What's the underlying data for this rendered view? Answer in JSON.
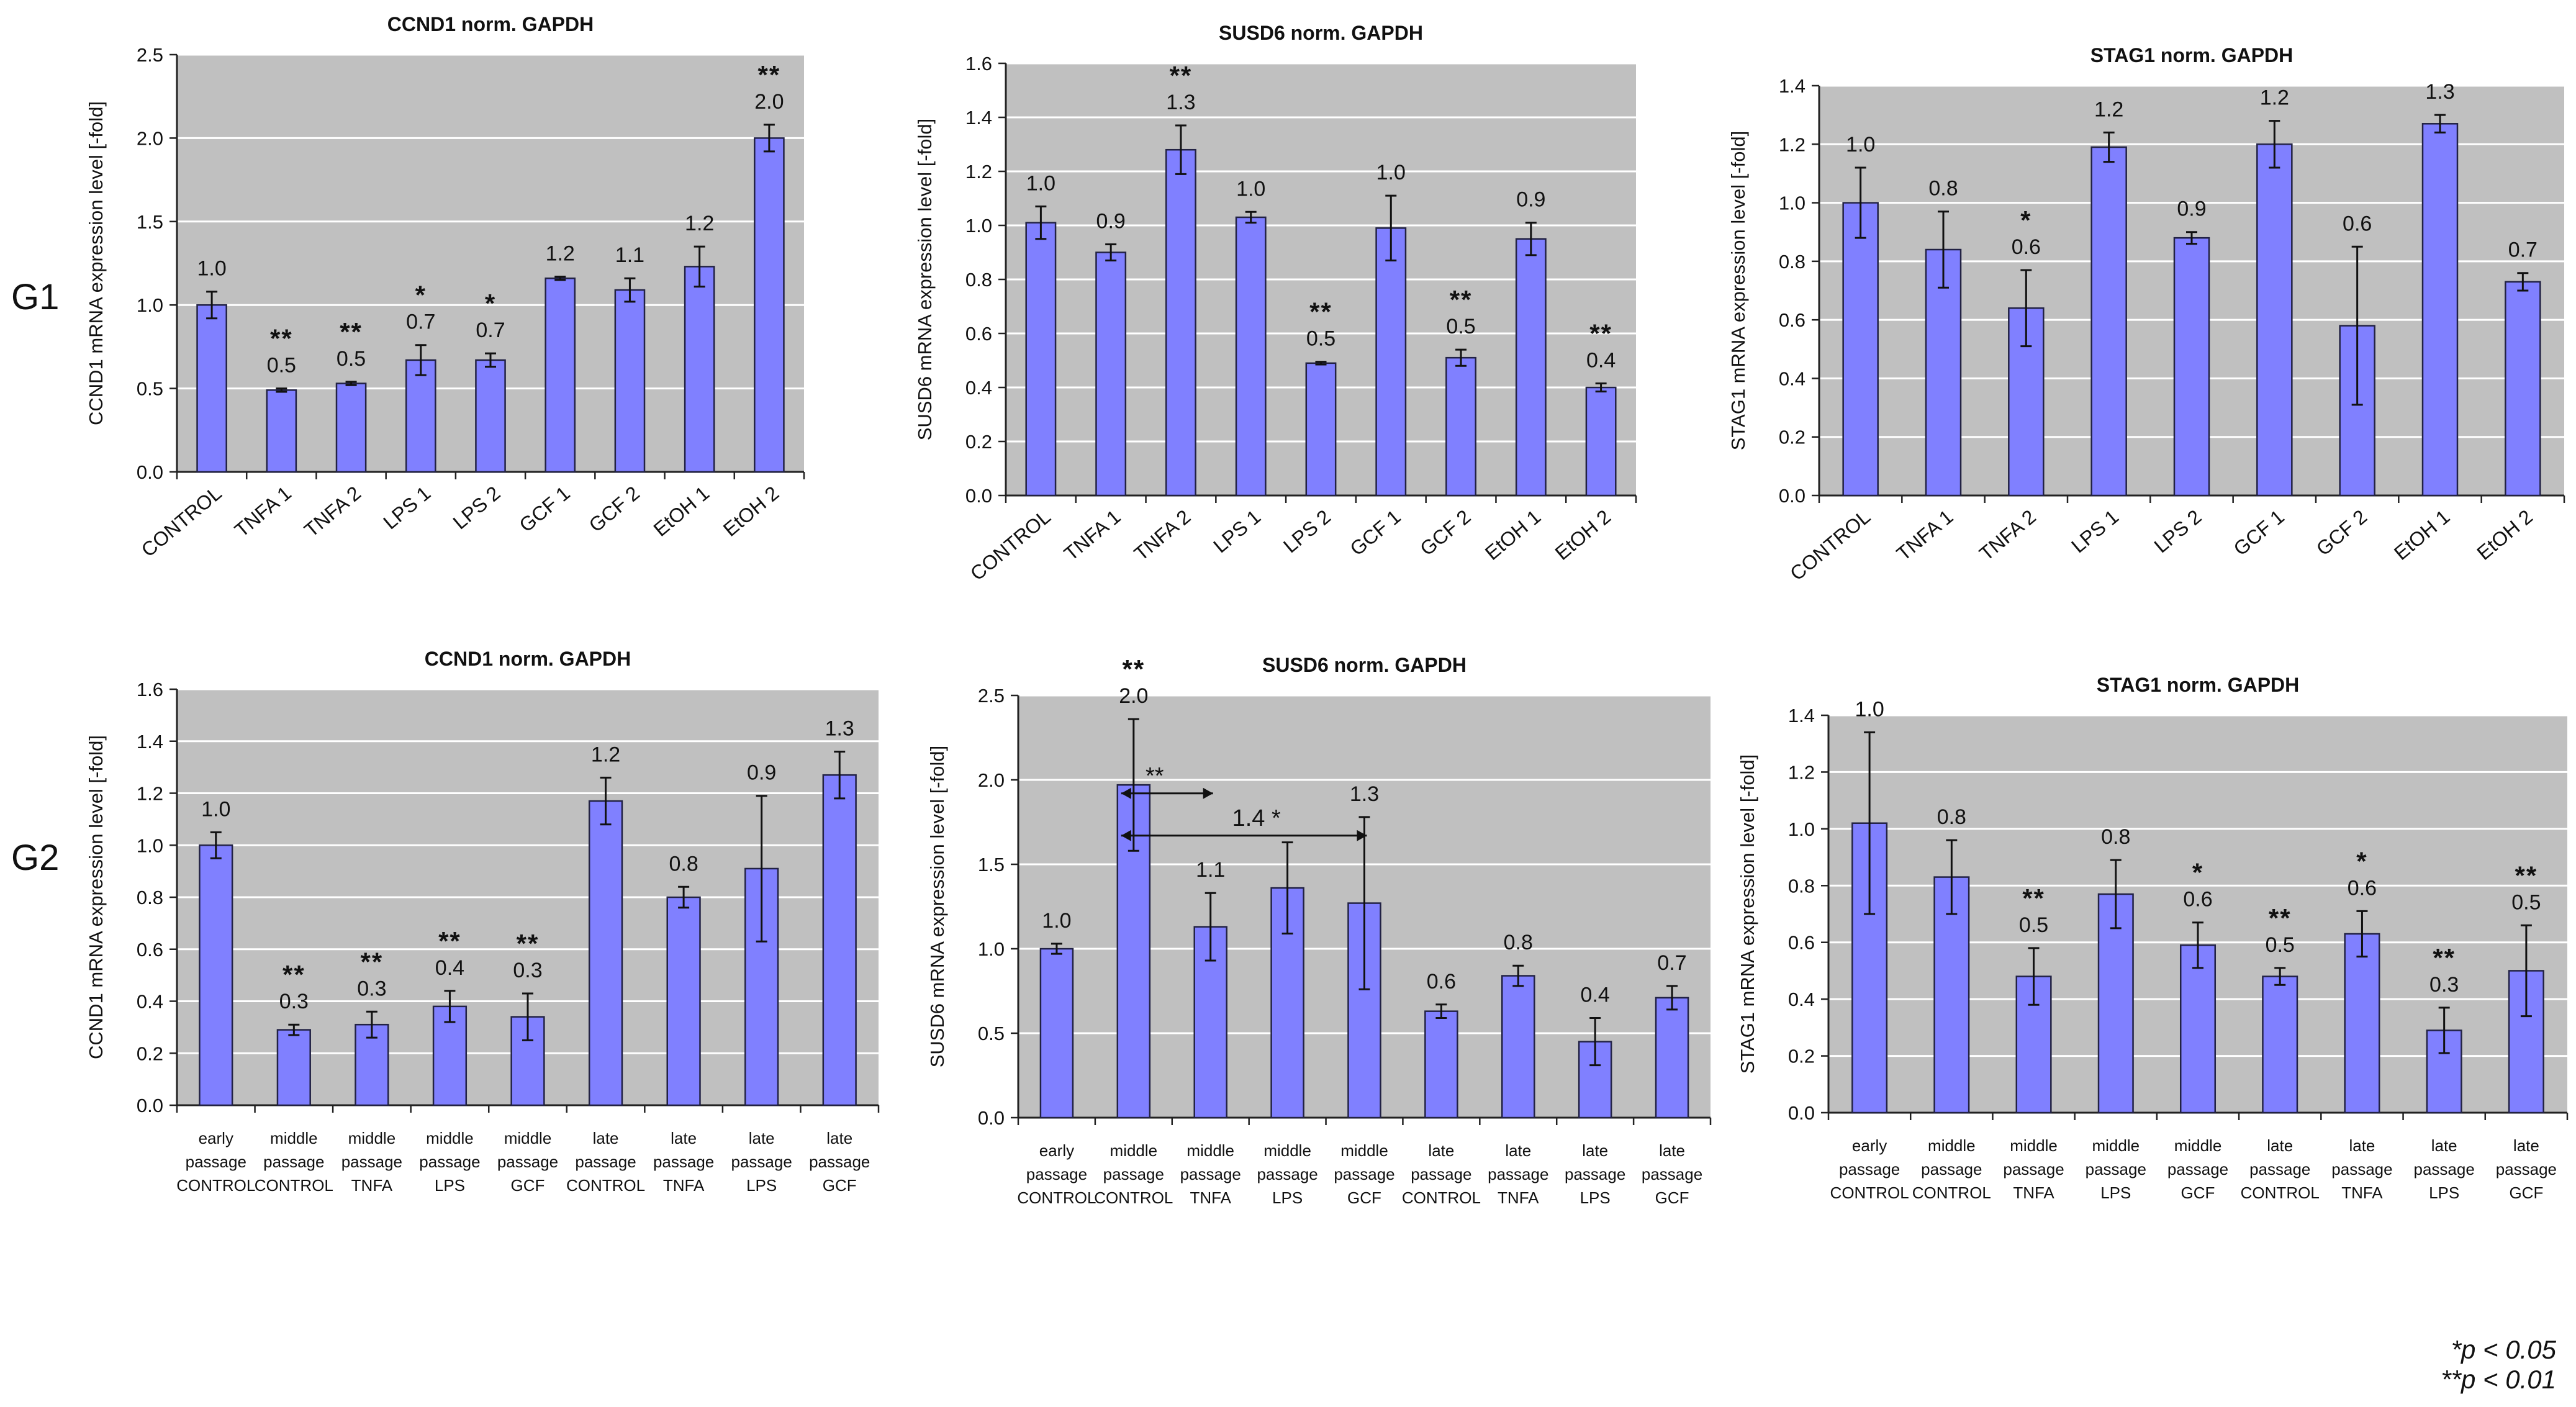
{
  "row_labels": [
    "G1",
    "G2"
  ],
  "legend": [
    "*p < 0.05",
    "**p < 0.01"
  ],
  "colors": {
    "bar": "#8080ff",
    "bar_stroke": "#222244",
    "plot_bg": "#c0c0c0",
    "grid": "#ffffff",
    "text": "#111111"
  },
  "chart_data": [
    {
      "id": "g1-ccnd1",
      "type": "bar",
      "title": "CCND1 norm. GAPDH",
      "ylabel": "CCND1  mRNA expression level [-fold]",
      "ylim": [
        0,
        2.5
      ],
      "yticks": [
        0,
        0.5,
        1.0,
        1.5,
        2.0,
        2.5
      ],
      "ytick_labels": [
        "0.0",
        "0.5",
        "1.0",
        "1.5",
        "2.0",
        "2.5"
      ],
      "categories": [
        "CONTROL",
        "TNFA 1",
        "TNFA  2",
        "LPS 1",
        "LPS 2",
        "GCF 1",
        "GCF 2",
        "EtOH 1",
        "EtOH 2"
      ],
      "values": [
        1.0,
        0.49,
        0.53,
        0.67,
        0.67,
        1.16,
        1.09,
        1.23,
        2.0
      ],
      "errors": [
        0.08,
        0.01,
        0.01,
        0.09,
        0.04,
        0.01,
        0.07,
        0.12,
        0.08
      ],
      "value_labels": [
        "1.0",
        "0.5",
        "0.5",
        "0.7",
        "0.7",
        "1.2",
        "1.1",
        "1.2",
        "2.0"
      ],
      "significance": [
        "",
        "**",
        "**",
        "*",
        "*",
        "",
        "",
        "",
        "**"
      ]
    },
    {
      "id": "g1-susd6",
      "type": "bar",
      "title": "SUSD6 norm. GAPDH",
      "ylabel": "SUSD6  mRNA expression level [-fold]",
      "ylim": [
        0,
        1.6
      ],
      "yticks": [
        0,
        0.2,
        0.4,
        0.6,
        0.8,
        1.0,
        1.2,
        1.4,
        1.6
      ],
      "ytick_labels": [
        "0.0",
        "0.2",
        "0.4",
        "0.6",
        "0.8",
        "1.0",
        "1.2",
        "1.4",
        "1.6"
      ],
      "categories": [
        "CONTROL",
        "TNFA 1",
        "TNFA  2",
        "LPS 1",
        "LPS 2",
        "GCF 1",
        "GCF 2",
        "EtOH 1",
        "EtOH 2"
      ],
      "values": [
        1.01,
        0.9,
        1.28,
        1.03,
        0.49,
        0.99,
        0.51,
        0.95,
        0.4
      ],
      "errors": [
        0.06,
        0.03,
        0.09,
        0.02,
        0.005,
        0.12,
        0.03,
        0.06,
        0.015
      ],
      "value_labels": [
        "1.0",
        "0.9",
        "1.3",
        "1.0",
        "0.5",
        "1.0",
        "0.5",
        "0.9",
        "0.4"
      ],
      "significance": [
        "",
        "",
        "**",
        "",
        "**",
        "",
        "**",
        "",
        "**"
      ]
    },
    {
      "id": "g1-stag1",
      "type": "bar",
      "title": "STAG1 norm. GAPDH",
      "ylabel": "STAG1  mRNA expression level [-fold]",
      "ylim": [
        0,
        1.4
      ],
      "yticks": [
        0,
        0.2,
        0.4,
        0.6,
        0.8,
        1.0,
        1.2,
        1.4
      ],
      "ytick_labels": [
        "0.0",
        "0.2",
        "0.4",
        "0.6",
        "0.8",
        "1.0",
        "1.2",
        "1.4"
      ],
      "categories": [
        "CONTROL",
        "TNFA 1",
        "TNFA  2",
        "LPS 1",
        "LPS 2",
        "GCF 1",
        "GCF 2",
        "EtOH 1",
        "EtOH 2"
      ],
      "values": [
        1.0,
        0.84,
        0.64,
        1.19,
        0.88,
        1.2,
        0.58,
        1.27,
        0.73
      ],
      "errors": [
        0.12,
        0.13,
        0.13,
        0.05,
        0.02,
        0.08,
        0.27,
        0.03,
        0.03
      ],
      "value_labels": [
        "1.0",
        "0.8",
        "0.6",
        "1.2",
        "0.9",
        "1.2",
        "0.6",
        "1.3",
        "0.7"
      ],
      "significance": [
        "",
        "",
        "*",
        "",
        "",
        "",
        "",
        "",
        ""
      ]
    },
    {
      "id": "g2-ccnd1",
      "type": "bar",
      "title": "CCND1 norm. GAPDH",
      "ylabel": "CCND1  mRNA expression level [-fold]",
      "ylim": [
        0,
        1.6
      ],
      "yticks": [
        0,
        0.2,
        0.4,
        0.6,
        0.8,
        1.0,
        1.2,
        1.4,
        1.6
      ],
      "ytick_labels": [
        "0.0",
        "0.2",
        "0.4",
        "0.6",
        "0.8",
        "1.0",
        "1.2",
        "1.4",
        "1.6"
      ],
      "categories": [
        [
          "early",
          "passage",
          "CONTROL"
        ],
        [
          "middle",
          "passage",
          "CONTROL"
        ],
        [
          "middle",
          "passage",
          "TNFA"
        ],
        [
          "middle",
          "passage",
          "LPS"
        ],
        [
          "middle",
          "passage",
          "GCF"
        ],
        [
          "late",
          "passage",
          "CONTROL"
        ],
        [
          "late",
          "passage",
          "TNFA"
        ],
        [
          "late",
          "passage",
          "LPS"
        ],
        [
          "late",
          "passage",
          "GCF"
        ]
      ],
      "values": [
        1.0,
        0.29,
        0.31,
        0.38,
        0.34,
        1.17,
        0.8,
        0.91,
        1.27
      ],
      "errors": [
        0.05,
        0.02,
        0.05,
        0.06,
        0.09,
        0.09,
        0.04,
        0.28,
        0.09
      ],
      "value_labels": [
        "1.0",
        "0.3",
        "0.3",
        "0.4",
        "0.3",
        "1.2",
        "0.8",
        "0.9",
        "1.3"
      ],
      "significance": [
        "",
        "**",
        "**",
        "**",
        "**",
        "",
        "",
        "",
        ""
      ]
    },
    {
      "id": "g2-susd6",
      "type": "bar",
      "title": "SUSD6 norm. GAPDH",
      "ylabel": "SUSD6  mRNA expression level [-fold]",
      "ylim": [
        0,
        2.5
      ],
      "yticks": [
        0,
        0.5,
        1.0,
        1.5,
        2.0,
        2.5
      ],
      "ytick_labels": [
        "0.0",
        "0.5",
        "1.0",
        "1.5",
        "2.0",
        "2.5"
      ],
      "categories": [
        [
          "early",
          "passage",
          "CONTROL"
        ],
        [
          "middle",
          "passage",
          "CONTROL"
        ],
        [
          "middle",
          "passage",
          "TNFA"
        ],
        [
          "middle",
          "passage",
          "LPS"
        ],
        [
          "middle",
          "passage",
          "GCF"
        ],
        [
          "late",
          "passage",
          "CONTROL"
        ],
        [
          "late",
          "passage",
          "TNFA"
        ],
        [
          "late",
          "passage",
          "LPS"
        ],
        [
          "late",
          "passage",
          "GCF"
        ]
      ],
      "values": [
        1.0,
        1.97,
        1.13,
        1.36,
        1.27,
        0.63,
        0.84,
        0.45,
        0.71
      ],
      "errors": [
        0.03,
        0.39,
        0.2,
        0.27,
        0.51,
        0.04,
        0.06,
        0.14,
        0.07
      ],
      "value_labels": [
        "1.0",
        "2.0",
        "1.1",
        "",
        "1.3",
        "0.6",
        "0.8",
        "0.4",
        "0.7"
      ],
      "significance": [
        "",
        "**",
        "",
        "",
        "",
        "",
        "",
        "",
        ""
      ],
      "comparisons": [
        {
          "from": 1,
          "to": 2,
          "y": 1.92,
          "label": "**"
        },
        {
          "from": 1,
          "to": 4,
          "y": 1.67,
          "label": "1.4 *"
        }
      ]
    },
    {
      "id": "g2-stag1",
      "type": "bar",
      "title": "STAG1 norm. GAPDH",
      "ylabel": "STAG1  mRNA expression level [-fold]",
      "ylim": [
        0,
        1.4
      ],
      "yticks": [
        0,
        0.2,
        0.4,
        0.6,
        0.8,
        1.0,
        1.2,
        1.4
      ],
      "ytick_labels": [
        "0.0",
        "0.2",
        "0.4",
        "0.6",
        "0.8",
        "1.0",
        "1.2",
        "1.4"
      ],
      "categories": [
        [
          "early",
          "passage",
          "CONTROL"
        ],
        [
          "middle",
          "passage",
          "CONTROL"
        ],
        [
          "middle",
          "passage",
          "TNFA"
        ],
        [
          "middle",
          "passage",
          "LPS"
        ],
        [
          "middle",
          "passage",
          "GCF"
        ],
        [
          "late",
          "passage",
          "CONTROL"
        ],
        [
          "late",
          "passage",
          "TNFA"
        ],
        [
          "late",
          "passage",
          "LPS"
        ],
        [
          "late",
          "passage",
          "GCF"
        ]
      ],
      "values": [
        1.02,
        0.83,
        0.48,
        0.77,
        0.59,
        0.48,
        0.63,
        0.29,
        0.5
      ],
      "errors": [
        0.32,
        0.13,
        0.1,
        0.12,
        0.08,
        0.03,
        0.08,
        0.08,
        0.16
      ],
      "value_labels": [
        "1.0",
        "0.8",
        "0.5",
        "0.8",
        "0.6",
        "0.5",
        "0.6",
        "0.3",
        "0.5"
      ],
      "significance": [
        "",
        "",
        "**",
        "",
        "*",
        "**",
        "*",
        "**",
        "**"
      ]
    }
  ]
}
